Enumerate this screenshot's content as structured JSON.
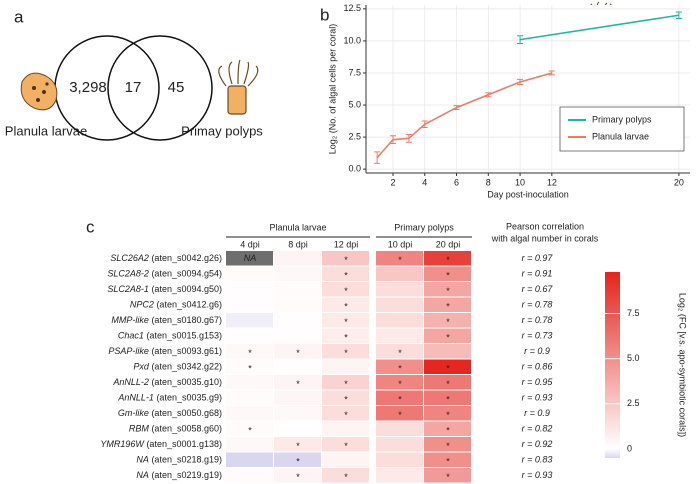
{
  "chart_data": [
    {
      "type": "venn",
      "label": "a",
      "sets": [
        "Planula larvae",
        "Primay polyps"
      ],
      "values": [
        3298,
        17,
        45
      ],
      "value_labels": [
        "3,298",
        "17",
        "45"
      ]
    },
    {
      "type": "line",
      "label": "b",
      "xlabel": "Day post-inoculation",
      "ylabel": "Log₂ (No. of algal cells per coral)",
      "xlim": [
        0.3,
        20.7
      ],
      "xticks": [
        2,
        4,
        6,
        8,
        10,
        12,
        20
      ],
      "ylim": [
        -0.3,
        12.8
      ],
      "yticks": [
        {
          "value": 0,
          "label": "0.0"
        },
        2.5,
        {
          "value": 5,
          "label": "5.0"
        },
        7.5,
        {
          "value": 10,
          "label": "10.0"
        },
        12.5
      ],
      "grid": true,
      "legend": "lower right",
      "series": [
        {
          "name": "Primary polyps",
          "color": "#1fb5a8",
          "x": [
            10,
            20
          ],
          "values": [
            10.1,
            12.0
          ],
          "errors": [
            0.3,
            0.25
          ]
        },
        {
          "name": "Planula larvae",
          "color": "#ef7b64",
          "x": [
            1,
            2,
            3,
            4,
            6,
            8,
            10,
            12
          ],
          "values": [
            0.9,
            2.3,
            2.4,
            3.5,
            4.8,
            5.8,
            6.8,
            7.5
          ],
          "errors": [
            0.45,
            0.3,
            0.3,
            0.25,
            0.15,
            0.15,
            0.2,
            0.15
          ]
        }
      ]
    },
    {
      "type": "heatmap",
      "label": "c",
      "groups": [
        {
          "name": "Planula larvae",
          "columns": [
            "4 dpi",
            "8 dpi",
            "12 dpi"
          ]
        },
        {
          "name": "Primary polyps",
          "columns": [
            "10 dpi",
            "20 dpi"
          ]
        }
      ],
      "rows": [
        {
          "gene": "SLC26A2",
          "id": "(aten_s0042.g26)"
        },
        {
          "gene": "SLC2A8-2",
          "id": "(aten_s0094.g54)"
        },
        {
          "gene": "SLC2A8-1",
          "id": "(aten_s0094.g50)"
        },
        {
          "gene": "NPC2",
          "id": "(aten_s0412.g6)"
        },
        {
          "gene": "MMP-like",
          "id": "(aten_s0180.g67)"
        },
        {
          "gene": "Chac1",
          "id": "(aten_s0015.g153)"
        },
        {
          "gene": "PSAP-like",
          "id": "(aten_s0093.g61)"
        },
        {
          "gene": "Pxd",
          "id": "(aten_s0342.g22)"
        },
        {
          "gene": "AnNLL-2",
          "id": "(aten_s0035.g10)"
        },
        {
          "gene": "AnNLL-1",
          "id": "(aten_s0035.g9)"
        },
        {
          "gene": "Gm-like",
          "id": "(aten_s0050.g68)"
        },
        {
          "gene": "RBM",
          "id": "(aten_s0058.g60)"
        },
        {
          "gene": "YMR196W",
          "id": "(aten_s0001.g138)"
        },
        {
          "gene": "NA",
          "id": "(aten_s0218.g19)"
        },
        {
          "gene": "NA",
          "id": "(aten_s0219.g19)"
        }
      ],
      "values": [
        [
          null,
          0.5,
          2.5,
          5.5,
          8.5
        ],
        [
          0.2,
          0.3,
          1.5,
          2.5,
          5
        ],
        [
          0.1,
          0.2,
          1.5,
          1.5,
          4
        ],
        [
          0.1,
          0.2,
          1,
          1.5,
          4
        ],
        [
          -0.2,
          0.1,
          1,
          1.5,
          3.5
        ],
        [
          0.1,
          0.1,
          0.8,
          1,
          4
        ],
        [
          0.3,
          0.5,
          1.5,
          1.5,
          3
        ],
        [
          0.2,
          0.1,
          0.5,
          5,
          9.6
        ],
        [
          0.3,
          0.5,
          2,
          5.5,
          6
        ],
        [
          0.2,
          0.4,
          1.5,
          6,
          6
        ],
        [
          0.3,
          0.3,
          1.5,
          6,
          5.5
        ],
        [
          0.2,
          0.1,
          0.5,
          1.5,
          4
        ],
        [
          0.3,
          1,
          1.5,
          1.5,
          5
        ],
        [
          -0.5,
          -0.5,
          0.5,
          1.5,
          5
        ],
        [
          0.2,
          0.5,
          1.5,
          1,
          4.5
        ]
      ],
      "cell_labels": [
        [
          "NA",
          null,
          "*",
          "*",
          "*"
        ],
        [
          null,
          null,
          "*",
          null,
          "*"
        ],
        [
          null,
          null,
          "*",
          null,
          "*"
        ],
        [
          null,
          null,
          "*",
          null,
          "*"
        ],
        [
          null,
          null,
          "*",
          null,
          "*"
        ],
        [
          null,
          null,
          "*",
          null,
          "*"
        ],
        [
          "*",
          "*",
          "*",
          "*",
          null
        ],
        [
          "*",
          null,
          null,
          "*",
          "*"
        ],
        [
          null,
          "*",
          "*",
          "*",
          "*"
        ],
        [
          null,
          null,
          "*",
          "*",
          "*"
        ],
        [
          null,
          null,
          "*",
          "*",
          "*"
        ],
        [
          "*",
          null,
          null,
          null,
          "*"
        ],
        [
          null,
          "*",
          "*",
          null,
          "*"
        ],
        [
          null,
          "*",
          null,
          null,
          "*"
        ],
        [
          null,
          "*",
          "*",
          null,
          "*"
        ]
      ],
      "pearson_title": [
        "Pearson correlation",
        "with algal number in corals"
      ],
      "pearson": [
        "r = 0.97",
        "r = 0.91",
        "r = 0.67",
        "r = 0.78",
        "r = 0.78",
        "r = 0.73",
        "r = 0.9",
        "r = 0.86",
        "r = 0.95",
        "r = 0.93",
        "r = 0.9",
        "r = 0.82",
        "r = 0.92",
        "r = 0.83",
        "r = 0.93"
      ],
      "clim": [
        -0.5,
        9.8
      ],
      "colors": [
        "#d9d6f0",
        "#ffffff",
        "#e3241c"
      ],
      "na_color": "#6e6e6e",
      "colorbar_title": "Log₂ (FC [v.s. apo-symbiotic corals])",
      "colorbar_ticks": [
        0,
        2.5,
        {
          "value": 5,
          "label": "5.0"
        },
        7.5
      ]
    }
  ]
}
